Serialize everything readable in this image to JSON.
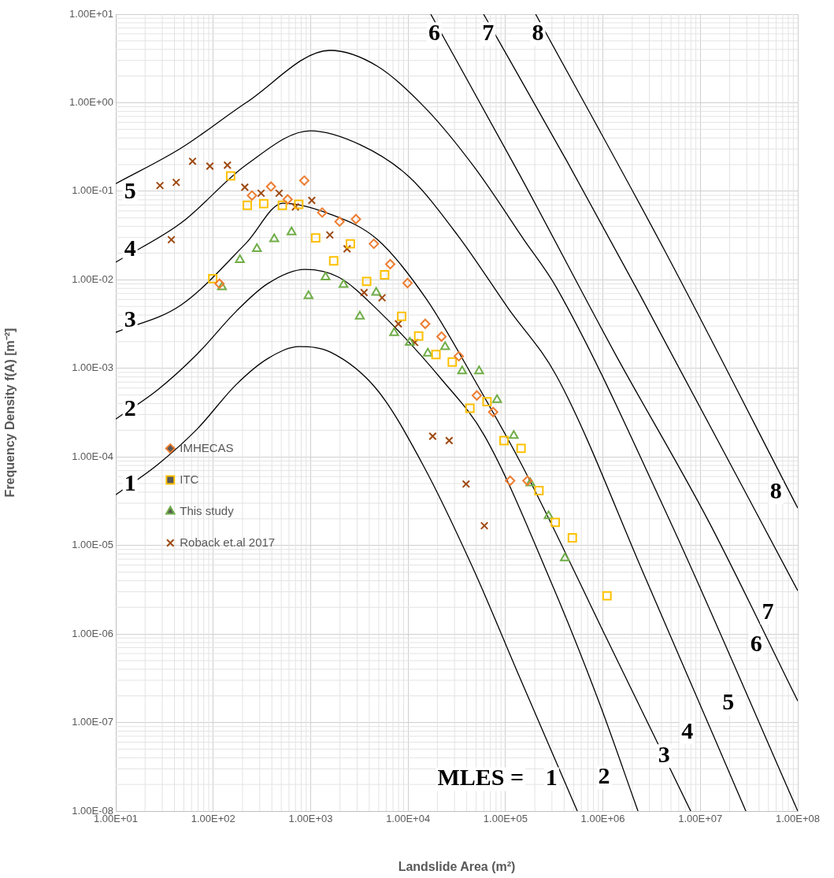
{
  "chart_data": {
    "type": "scatter",
    "xlabel": "Landslide Area (m²)",
    "ylabel": "Frequency Density f(A) [m⁻²]",
    "log": "xy",
    "grid": true,
    "legend": "left",
    "xlim": [
      10,
      100000000
    ],
    "ylim": [
      1e-08,
      10
    ],
    "xticks": [
      {
        "value": 10,
        "label": "1.00E+01"
      },
      {
        "value": 100,
        "label": "1.00E+02"
      },
      {
        "value": 1000,
        "label": "1.00E+03"
      },
      {
        "value": 10000,
        "label": "1.00E+04"
      },
      {
        "value": 100000,
        "label": "1.00E+05"
      },
      {
        "value": 1000000,
        "label": "1.00E+06"
      },
      {
        "value": 10000000,
        "label": "1.00E+07"
      },
      {
        "value": 100000000,
        "label": "1.00E+08"
      }
    ],
    "yticks": [
      {
        "value": 1e-08,
        "label": "1.00E-08"
      },
      {
        "value": 1e-07,
        "label": "1.00E-07"
      },
      {
        "value": 1e-06,
        "label": "1.00E-06"
      },
      {
        "value": 1e-05,
        "label": "1.00E-05"
      },
      {
        "value": 0.0001,
        "label": "1.00E-04"
      },
      {
        "value": 0.001,
        "label": "1.00E-03"
      },
      {
        "value": 0.01,
        "label": "1.00E-02"
      },
      {
        "value": 0.1,
        "label": "1.00E-01"
      },
      {
        "value": 1,
        "label": "1.00E+00"
      },
      {
        "value": 10,
        "label": "1.00E+01"
      }
    ],
    "series": [
      {
        "name": "IMHECAS",
        "marker": "diamond",
        "color": "#ed7d31",
        "x": [
          116,
          250,
          392,
          581,
          861,
          1315,
          1982,
          2917,
          4457,
          6561,
          9880,
          15000,
          22030,
          33200,
          50800,
          74700,
          111700,
          168000
        ],
        "values": [
          0.00904,
          0.0895,
          0.113,
          0.0809,
          0.132,
          0.0575,
          0.0454,
          0.0485,
          0.0255,
          0.015,
          0.00918,
          0.00318,
          0.00228,
          0.00137,
          0.000494,
          0.000321,
          5.38e-05,
          5.38e-05
        ]
      },
      {
        "name": "ITC",
        "marker": "square",
        "color": "#ffc000",
        "x": [
          99,
          151,
          224,
          330,
          513,
          755,
          1127,
          1725,
          2559,
          3760,
          5750,
          8590,
          12850,
          19330,
          28440,
          43150,
          64600,
          96600,
          144500,
          220600,
          324300,
          485400,
          1101000
        ],
        "values": [
          0.0103,
          0.149,
          0.0693,
          0.0724,
          0.0693,
          0.0711,
          0.0297,
          0.0164,
          0.0255,
          0.00959,
          0.0114,
          0.00387,
          0.00232,
          0.00143,
          0.00118,
          0.000354,
          0.00042,
          0.000153,
          0.000125,
          4.17e-05,
          1.82e-05,
          1.22e-05,
          2.7e-06
        ]
      },
      {
        "name": "This study",
        "marker": "triangle",
        "color": "#70ad47",
        "x": [
          123,
          188,
          281,
          423,
          637,
          952,
          1423,
          2175,
          3200,
          4710,
          7200,
          10420,
          15950,
          24000,
          35900,
          53600,
          81900,
          121600,
          180000,
          277000,
          407000
        ],
        "values": [
          0.0083,
          0.0168,
          0.0224,
          0.0289,
          0.0346,
          0.00659,
          0.0107,
          0.00881,
          0.00386,
          0.00718,
          0.00252,
          0.00196,
          0.00148,
          0.00175,
          0.000933,
          0.000933,
          0.000442,
          0.000174,
          5.05e-05,
          2.15e-05,
          7.2e-06
        ]
      },
      {
        "name": "Roback et.al 2017",
        "marker": "cross",
        "color": "#9e480e",
        "x": [
          28.4,
          37.2,
          41.7,
          61.4,
          92.5,
          140,
          211,
          310,
          475,
          698,
          1028,
          1574,
          2366,
          3540,
          5410,
          7960,
          11700,
          17900,
          26400,
          39400,
          60700
        ],
        "values": [
          0.116,
          0.0284,
          0.126,
          0.218,
          0.192,
          0.197,
          0.111,
          0.095,
          0.095,
          0.0665,
          0.0789,
          0.0321,
          0.0224,
          0.00718,
          0.00627,
          0.00318,
          0.00196,
          0.000171,
          0.000153,
          4.94e-05,
          1.67e-05
        ]
      },
      {
        "type": "line",
        "marker": "none",
        "color": "#000000",
        "x": [
          10,
          26.8,
          68.1,
          173,
          363,
          766,
          1610,
          4830,
          14200,
          45900,
          140000,
          546000
        ],
        "values": [
          3.74e-05,
          8.15e-05,
          0.000205,
          0.000659,
          0.00129,
          0.00176,
          0.00152,
          0.00057,
          8.15e-05,
          5.68e-06,
          3.23e-07,
          1e-08
        ]
      },
      {
        "type": "line",
        "marker": "none",
        "color": "#000000",
        "x": [
          10,
          26.8,
          68.1,
          173,
          363,
          871,
          1940,
          4830,
          22600,
          60700,
          296000,
          904000,
          2290000
        ],
        "values": [
          0.000267,
          0.00057,
          0.00144,
          0.00443,
          0.00906,
          0.0131,
          0.0107,
          0.00461,
          0.000729,
          0.000174,
          3.78e-06,
          1.75e-07,
          1e-08
        ]
      },
      {
        "type": "line",
        "marker": "none",
        "color": "#000000",
        "x": [
          10,
          46.9,
          220,
          518,
          1520,
          4830,
          15300,
          48500,
          154000,
          1087000,
          7960000
        ],
        "values": [
          0.00255,
          0.00521,
          0.0263,
          0.0733,
          0.0561,
          0.0286,
          0.00614,
          0.000729,
          7.36e-05,
          9e-07,
          1e-08
        ]
      },
      {
        "type": "line",
        "marker": "none",
        "color": "#000000",
        "x": [
          10,
          46.9,
          220,
          993,
          3270,
          10350,
          32900,
          106000,
          337000,
          2760000,
          29300000
        ],
        "values": [
          0.0158,
          0.0439,
          0.2,
          0.482,
          0.333,
          0.144,
          0.031,
          0.00481,
          0.000807,
          4.18e-06,
          1e-08
        ]
      },
      {
        "type": "line",
        "marker": "none",
        "color": "#000000",
        "x": [
          10,
          46.9,
          220,
          1580,
          4830,
          15300,
          48500,
          154000,
          337000,
          4820000,
          100000000
        ],
        "values": [
          0.122,
          0.308,
          1.01,
          3.9,
          2.59,
          0.855,
          0.184,
          0.0286,
          0.00802,
          1.94e-05,
          1e-08
        ]
      },
      {
        "type": "line",
        "marker": "none",
        "color": "#000000",
        "x": [
          17100,
          140000,
          1309000,
          12200000,
          100000000
        ],
        "values": [
          10,
          0.153,
          0.00152,
          1.86e-05,
          1.75e-07
        ]
      },
      {
        "type": "line",
        "marker": "none",
        "color": "#000000",
        "x": [
          59600,
          429000,
          2420000,
          100000000
        ],
        "values": [
          10,
          0.217,
          0.00667,
          3.08e-06
        ]
      },
      {
        "type": "line",
        "marker": "none",
        "color": "#000000",
        "x": [
          204000,
          4480000,
          100000000
        ],
        "values": [
          10,
          0.0197,
          2.64e-05
        ]
      }
    ],
    "annotations": [
      "1",
      "2",
      "3",
      "4",
      "5",
      "6",
      "7",
      "8",
      "MLES =",
      "1",
      "2",
      "3",
      "4",
      "5",
      "6",
      "7",
      "8"
    ]
  }
}
